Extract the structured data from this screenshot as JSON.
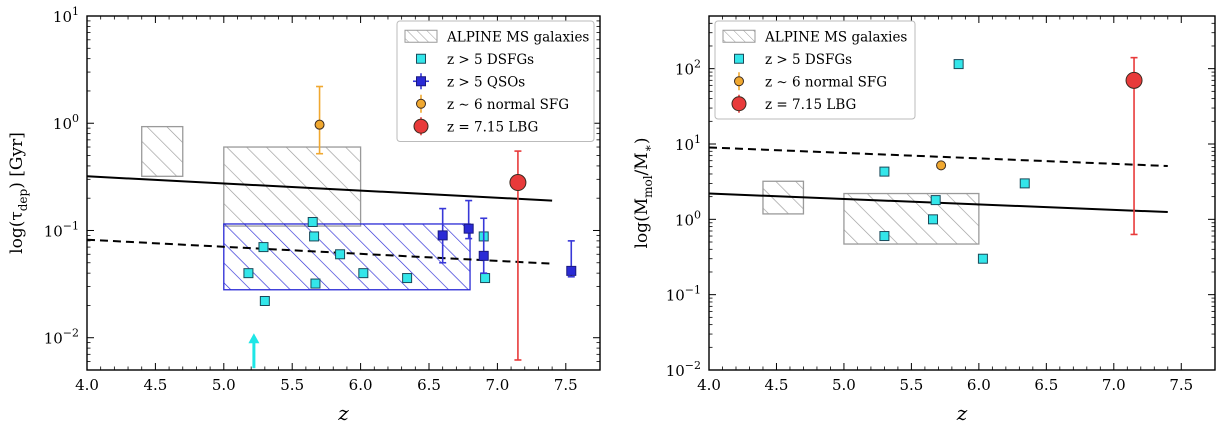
{
  "chart_data": [
    {
      "panel": "left",
      "type": "scatter",
      "xlabel": "z",
      "ylabel": "log(τ_dep) [Gyr]",
      "ylabel_main": "log(τ",
      "ylabel_sub": "dep",
      "ylabel_unit": ") [Gyr]",
      "xlim": [
        4.0,
        7.75
      ],
      "ylim": [
        0.005,
        10
      ],
      "yscale": "log",
      "xticks": [
        4.0,
        4.5,
        5.0,
        5.5,
        6.0,
        6.5,
        7.0,
        7.5
      ],
      "xtick_labels": [
        "4.0",
        "4.5",
        "5.0",
        "5.5",
        "6.0",
        "6.5",
        "7.0",
        "7.5"
      ],
      "yticks": [
        0.01,
        0.1,
        1,
        10
      ],
      "ytick_labels": [
        {
          "base": "10",
          "exp": "−2"
        },
        {
          "base": "10",
          "exp": "−1"
        },
        {
          "base": "10",
          "exp": "0"
        },
        {
          "base": "10",
          "exp": "1"
        }
      ],
      "regions": [
        {
          "name": "ALPINE MS galaxies",
          "x": [
            4.4,
            4.7
          ],
          "y": [
            0.32,
            0.93
          ],
          "color": "#9a9a9a",
          "hatch": "gray"
        },
        {
          "name": "ALPINE MS galaxies",
          "x": [
            5.0,
            6.0
          ],
          "y": [
            0.11,
            0.6
          ],
          "color": "#9a9a9a",
          "hatch": "gray"
        },
        {
          "name": "z > 5 QSOs",
          "x": [
            5.0,
            6.8
          ],
          "y": [
            0.028,
            0.115
          ],
          "color": "#2a2ad6",
          "hatch": "blue"
        }
      ],
      "lines": [
        {
          "style": "solid",
          "x": [
            4.0,
            7.4
          ],
          "y": [
            0.32,
            0.19
          ]
        },
        {
          "style": "dashed",
          "x": [
            4.0,
            7.4
          ],
          "y": [
            0.082,
            0.049
          ]
        }
      ],
      "series": [
        {
          "name": "z > 5 DSFGs",
          "marker": "square",
          "color": "#33e6ea",
          "x": [
            5.18,
            5.29,
            5.3,
            5.65,
            5.66,
            5.67,
            5.85,
            6.02,
            6.34,
            6.9,
            6.91
          ],
          "y": [
            0.04,
            0.07,
            0.022,
            0.12,
            0.088,
            0.032,
            0.06,
            0.04,
            0.036,
            0.088,
            0.036
          ]
        },
        {
          "name": "z > 5 QSOs",
          "marker": "square",
          "color": "#2a2ad6",
          "x": [
            6.6,
            6.79,
            6.9,
            7.54
          ],
          "y": [
            0.09,
            0.104,
            0.058,
            0.042
          ],
          "yerr_low": [
            0.05,
            0.084,
            0.04,
            0.037
          ],
          "yerr_high": [
            0.16,
            0.19,
            0.13,
            0.08
          ]
        },
        {
          "name": "z ∼ 6 normal SFG",
          "marker": "circle",
          "color": "#f0a830",
          "x": [
            5.7
          ],
          "y": [
            0.97
          ],
          "yerr_low": [
            0.52
          ],
          "yerr_high": [
            2.2
          ]
        },
        {
          "name": "z = 7.15 LBG",
          "marker": "circle",
          "color": "#e83a3a",
          "x": [
            7.15
          ],
          "y": [
            0.28
          ],
          "yerr_low": [
            0.0062
          ],
          "yerr_high": [
            0.55
          ]
        }
      ],
      "annotations": [
        {
          "type": "upward-arrow",
          "x": 5.22,
          "y_from": 0.0052,
          "y_to": 0.011,
          "color": "#1ee6e6"
        }
      ],
      "legend": {
        "position": "top-right",
        "entries": [
          {
            "label": "ALPINE MS galaxies",
            "symbol": "hatch-gray"
          },
          {
            "label": "z > 5 DSFGs",
            "symbol": "square-cyan"
          },
          {
            "label": "z > 5 QSOs",
            "symbol": "square-blue-errbar"
          },
          {
            "label": "z ∼ 6 normal SFG",
            "symbol": "circle-orange-errbar"
          },
          {
            "label": "z = 7.15 LBG",
            "symbol": "circle-red-errbar"
          }
        ]
      }
    },
    {
      "panel": "right",
      "type": "scatter",
      "xlabel": "z",
      "ylabel": "log(M_mol / M_*)",
      "ylabel_main": "log(M",
      "ylabel_sub": "mol",
      "ylabel_mid": "/M",
      "ylabel_sub2": "∗",
      "ylabel_end": ")",
      "xlim": [
        4.0,
        7.75
      ],
      "ylim": [
        0.01,
        500
      ],
      "yscale": "log",
      "xticks": [
        4.0,
        4.5,
        5.0,
        5.5,
        6.0,
        6.5,
        7.0,
        7.5
      ],
      "xtick_labels": [
        "4.0",
        "4.5",
        "5.0",
        "5.5",
        "6.0",
        "6.5",
        "7.0",
        "7.5"
      ],
      "yticks": [
        0.01,
        0.1,
        1,
        10,
        100
      ],
      "ytick_labels": [
        {
          "base": "10",
          "exp": "−2"
        },
        {
          "base": "10",
          "exp": "−1"
        },
        {
          "base": "10",
          "exp": "0"
        },
        {
          "base": "10",
          "exp": "1"
        },
        {
          "base": "10",
          "exp": "2"
        }
      ],
      "regions": [
        {
          "name": "ALPINE MS galaxies",
          "x": [
            4.4,
            4.7
          ],
          "y": [
            1.18,
            3.2
          ],
          "color": "#9a9a9a",
          "hatch": "gray"
        },
        {
          "name": "ALPINE MS galaxies",
          "x": [
            5.0,
            6.0
          ],
          "y": [
            0.47,
            2.2
          ],
          "color": "#9a9a9a",
          "hatch": "gray"
        }
      ],
      "lines": [
        {
          "style": "solid",
          "x": [
            4.0,
            7.4
          ],
          "y": [
            2.2,
            1.25
          ]
        },
        {
          "style": "dashed",
          "x": [
            4.0,
            7.4
          ],
          "y": [
            9.0,
            5.1
          ]
        }
      ],
      "series": [
        {
          "name": "z > 5 DSFGs",
          "marker": "square",
          "color": "#33e6ea",
          "x": [
            5.3,
            5.3,
            5.66,
            5.68,
            5.85,
            6.03,
            6.34
          ],
          "y": [
            4.3,
            0.6,
            1.0,
            1.8,
            115,
            0.3,
            3.0
          ]
        },
        {
          "name": "z ∼ 6 normal SFG",
          "marker": "circle",
          "color": "#f0a830",
          "x": [
            5.72
          ],
          "y": [
            5.2
          ]
        },
        {
          "name": "z = 7.15 LBG",
          "marker": "circle",
          "color": "#e83a3a",
          "x": [
            7.15
          ],
          "y": [
            70
          ],
          "yerr_low": [
            0.63
          ],
          "yerr_high": [
            140
          ]
        }
      ],
      "legend": {
        "position": "top-left",
        "entries": [
          {
            "label": "ALPINE MS galaxies",
            "symbol": "hatch-gray"
          },
          {
            "label": "z > 5 DSFGs",
            "symbol": "square-cyan"
          },
          {
            "label": "z ∼ 6 normal SFG",
            "symbol": "circle-orange-errbar"
          },
          {
            "label": "z = 7.15 LBG",
            "symbol": "circle-red-errbar"
          }
        ]
      }
    }
  ]
}
